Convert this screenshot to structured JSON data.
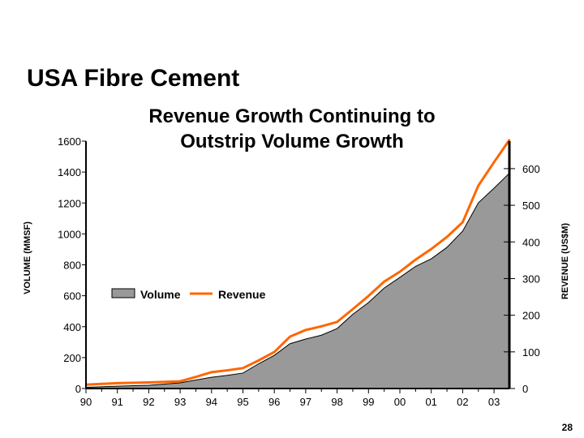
{
  "slide": {
    "title": "USA Fibre Cement",
    "page_number": "28"
  },
  "chart_data": {
    "type": "area+line",
    "title_lines": [
      "Revenue Growth Continuing to",
      "Outstrip Volume Growth"
    ],
    "xlabel": "",
    "ylabel_left": "VOLUME (MMSF)",
    "ylabel_right": "REVENUE (US$M)",
    "x_tick_labels": [
      "90",
      "91",
      "92",
      "93",
      "94",
      "95",
      "96",
      "97",
      "98",
      "99",
      "00",
      "01",
      "02",
      "03"
    ],
    "xlim": [
      0,
      13.5
    ],
    "ylim_left": [
      0,
      1600
    ],
    "y_ticks_left": [
      0,
      200,
      400,
      600,
      800,
      1000,
      1200,
      1400,
      1600
    ],
    "ylim_right": [
      0,
      675
    ],
    "y_ticks_right": [
      0,
      100,
      200,
      300,
      400,
      500,
      600
    ],
    "legend": {
      "placement": "middle-left",
      "entries": [
        "Volume",
        "Revenue"
      ]
    },
    "colors": {
      "volume": "#999999",
      "revenue": "#FF6600"
    },
    "x": [
      0,
      1,
      2,
      3,
      3.5,
      4,
      4.5,
      5,
      5.5,
      6,
      6.5,
      7,
      7.5,
      8,
      8.5,
      9,
      9.5,
      10,
      10.5,
      11,
      11.5,
      12,
      12.5,
      13,
      13.5
    ],
    "series": [
      {
        "name": "Volume",
        "axis": "left",
        "type": "area",
        "values": [
          8,
          15,
          21,
          37,
          55,
          73,
          85,
          100,
          160,
          215,
          290,
          320,
          345,
          388,
          480,
          556,
          650,
          719,
          790,
          839,
          913,
          1018,
          1201,
          1296,
          1395
        ]
      },
      {
        "name": "Revenue",
        "axis": "right",
        "type": "line",
        "values": [
          4,
          8,
          10,
          13,
          25,
          38,
          43,
          49,
          70,
          93,
          135,
          153,
          163,
          175,
          210,
          246,
          285,
          312,
          345,
          374,
          407,
          447,
          547,
          611,
          673
        ]
      }
    ]
  }
}
